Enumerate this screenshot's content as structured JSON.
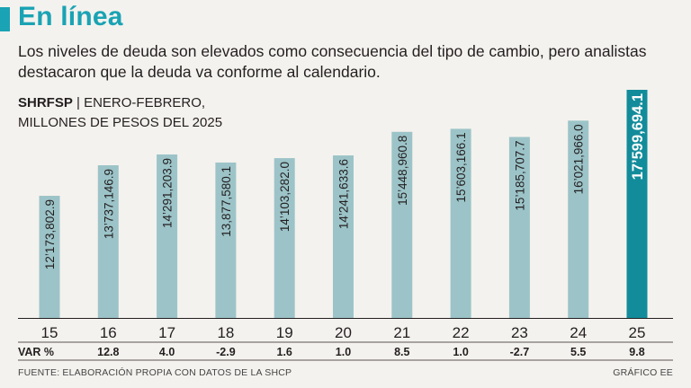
{
  "header": {
    "title": "En línea",
    "subtitle": "Los niveles de deuda son elevados como consecuencia del tipo de cambio, pero analistas destacaron que la deuda va conforme al calendario."
  },
  "series_label": {
    "code": "SHRFSP",
    "separator": " | ",
    "period": "ENERO-FEBRERO,",
    "units": "MILLONES DE PESOS DEL 2025"
  },
  "var_label": "VAR %",
  "footer": {
    "source": "FUENTE: ELABORACIÓN PROPIA CON DATOS DE LA SHCP",
    "credit": "GRÁFICO EE"
  },
  "colors": {
    "accent": "#1aa3b4",
    "bar": "#9cc4c8",
    "bar_highlight": "#128c9b"
  },
  "chart_data": {
    "type": "bar",
    "title": "SHRFSP | ENERO-FEBRERO, MILLONES DE PESOS DEL 2025",
    "xlabel": "",
    "ylabel": "",
    "categories": [
      "15",
      "16",
      "17",
      "18",
      "19",
      "20",
      "21",
      "22",
      "23",
      "24",
      "25"
    ],
    "values": [
      12173802.9,
      13737146.9,
      14291203.9,
      13877580.1,
      14103282.0,
      14241633.6,
      15448960.8,
      15603166.1,
      15185707.7,
      16021966.0,
      17599694.1
    ],
    "value_labels": [
      "12’173,802.9",
      "13’737,146.9",
      "14’291,203.9",
      "13,877,580.1",
      "14’103,282.0",
      "14’241,633.6",
      "15’448,960.8",
      "15’603,166.1",
      "15’185,707.7",
      "16’021,966.0",
      "17’599,694.1"
    ],
    "var_pct": [
      "",
      "12.8",
      "4.0",
      "-2.9",
      "1.6",
      "1.0",
      "8.5",
      "1.0",
      "-2.7",
      "5.5",
      "9.8"
    ],
    "highlight_index": 10,
    "ylim": [
      0,
      17599694.1
    ],
    "grid": false,
    "legend": "none"
  }
}
